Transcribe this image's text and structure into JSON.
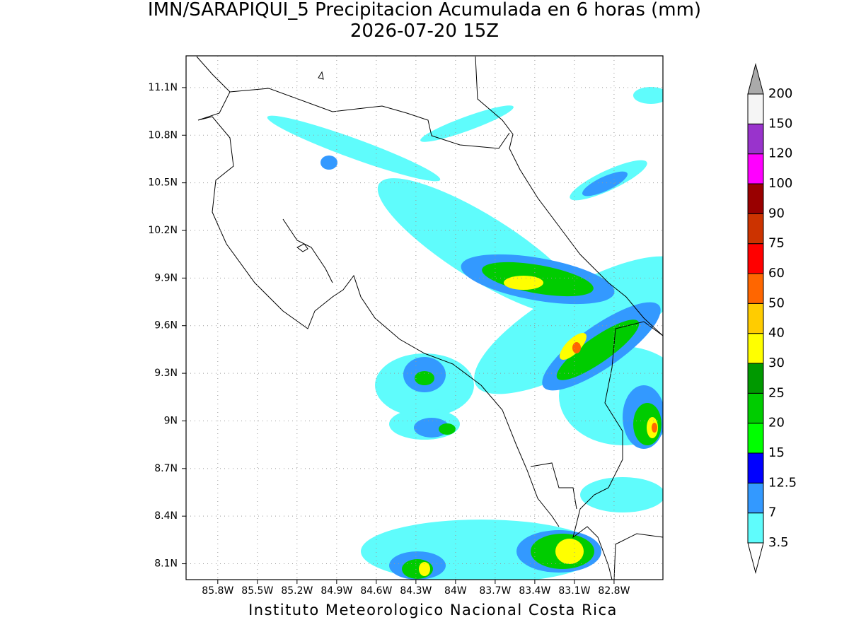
{
  "title": "IMN/SARAPIQUI_5 Precipitacion Acumulada en 6 horas (mm)",
  "subtitle": "2026-07-20 15Z",
  "footer": "Instituto Meteorologico Nacional Costa Rica",
  "map": {
    "xlim": [
      -86.04,
      -82.43
    ],
    "ylim": [
      8.0,
      11.3
    ],
    "xticks": [
      {
        "value": -85.8,
        "label": "85.8W"
      },
      {
        "value": -85.5,
        "label": "85.5W"
      },
      {
        "value": -85.2,
        "label": "85.2W"
      },
      {
        "value": -84.9,
        "label": "84.9W"
      },
      {
        "value": -84.6,
        "label": "84.6W"
      },
      {
        "value": -84.3,
        "label": "84.3W"
      },
      {
        "value": -84.0,
        "label": "84W"
      },
      {
        "value": -83.7,
        "label": "83.7W"
      },
      {
        "value": -83.4,
        "label": "83.4W"
      },
      {
        "value": -83.1,
        "label": "83.1W"
      },
      {
        "value": -82.8,
        "label": "82.8W"
      }
    ],
    "yticks": [
      {
        "value": 8.1,
        "label": "8.1N"
      },
      {
        "value": 8.4,
        "label": "8.4N"
      },
      {
        "value": 8.7,
        "label": "8.7N"
      },
      {
        "value": 9.0,
        "label": "9N"
      },
      {
        "value": 9.3,
        "label": "9.3N"
      },
      {
        "value": 9.6,
        "label": "9.6N"
      },
      {
        "value": 9.9,
        "label": "9.9N"
      },
      {
        "value": 10.2,
        "label": "10.2N"
      },
      {
        "value": 10.5,
        "label": "10.5N"
      },
      {
        "value": 10.8,
        "label": "10.8N"
      },
      {
        "value": 11.1,
        "label": "11.1N"
      }
    ],
    "grid": true
  },
  "colorbar": {
    "levels": [
      3.5,
      7,
      12.5,
      15,
      20,
      25,
      30,
      40,
      50,
      60,
      75,
      90,
      100,
      120,
      150,
      200
    ],
    "colors": [
      "#5ffcfc",
      "#3399ff",
      "#0000ff",
      "#00ff00",
      "#00cc00",
      "#009900",
      "#ffff00",
      "#ffcc00",
      "#ff6600",
      "#ff0000",
      "#cc3300",
      "#990000",
      "#ff00ff",
      "#9933cc",
      "#f5f5f5"
    ],
    "over_color": "#aaaaaa"
  }
}
